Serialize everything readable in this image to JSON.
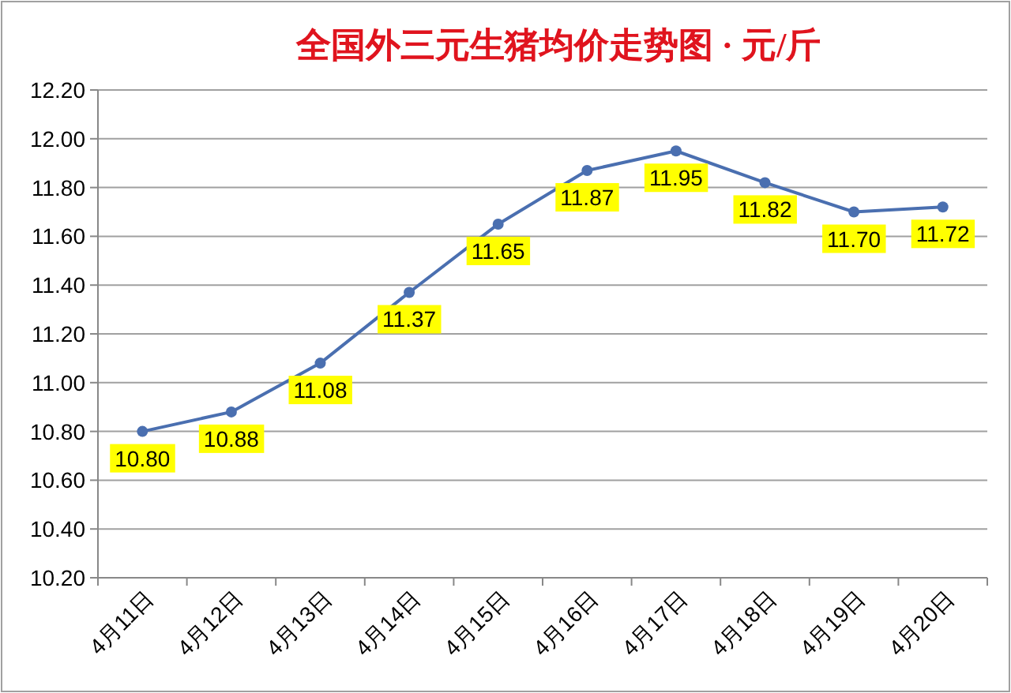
{
  "chart_data": {
    "type": "line",
    "title": "全国外三元生猪均价走势图 · 元/斤",
    "categories": [
      "4月11日",
      "4月12日",
      "4月13日",
      "4月14日",
      "4月15日",
      "4月16日",
      "4月17日",
      "4月18日",
      "4月19日",
      "4月20日"
    ],
    "series": [
      {
        "color": "#4a6fb0",
        "values": [
          10.8,
          10.88,
          11.08,
          11.37,
          11.65,
          11.87,
          11.95,
          11.82,
          11.7,
          11.72
        ],
        "value_labels": [
          "10.80",
          "10.88",
          "11.08",
          "11.37",
          "11.65",
          "11.87",
          "11.95",
          "11.82",
          "11.70",
          "11.72"
        ]
      }
    ],
    "ylim": [
      10.2,
      12.2
    ],
    "yticks": [
      {
        "value": 10.2,
        "label": "10.20"
      },
      {
        "value": 10.4,
        "label": "10.40"
      },
      {
        "value": 10.6,
        "label": "10.60"
      },
      {
        "value": 10.8,
        "label": "10.80"
      },
      {
        "value": 11.0,
        "label": "11.00"
      },
      {
        "value": 11.2,
        "label": "11.20"
      },
      {
        "value": 11.4,
        "label": "11.40"
      },
      {
        "value": 11.6,
        "label": "11.60"
      },
      {
        "value": 11.8,
        "label": "11.80"
      },
      {
        "value": 12.0,
        "label": "12.00"
      },
      {
        "value": 12.2,
        "label": "12.20"
      }
    ],
    "grid": "y",
    "marker": "circle",
    "line_style": "solid"
  }
}
